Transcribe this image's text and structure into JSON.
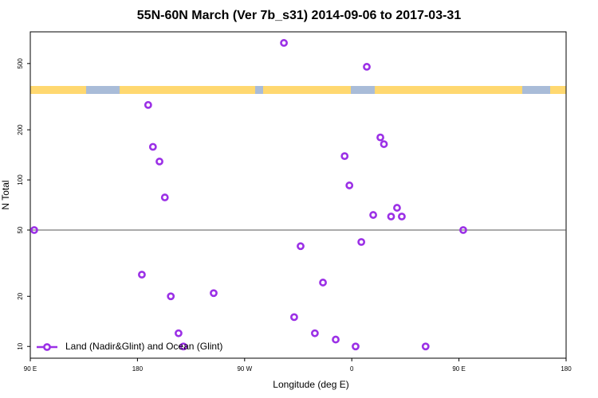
{
  "chart_data": {
    "type": "scatter",
    "title": "55N-60N March (Ver 7b_s31)   2014-09-06 to 2017-03-31",
    "xlabel": "Longitude (deg E)",
    "ylabel": "N Total",
    "xlim": [
      90,
      540
    ],
    "xticks": [
      {
        "value": 90,
        "label": "90 E"
      },
      180,
      {
        "value": 270,
        "label": "90 W"
      },
      {
        "value": 360,
        "label": "0"
      },
      {
        "value": 450,
        "label": "90 E"
      },
      {
        "value": 540,
        "label": "180"
      }
    ],
    "ylim": [
      8.5,
      775
    ],
    "log_y": true,
    "yticks": [
      10,
      20,
      50,
      100,
      200,
      500
    ],
    "hline": 50,
    "legend": "bottom-left",
    "series": [
      {
        "name": "Land (Nadir&Glint) and Ocean (Glint)",
        "color": "#9b30e6",
        "x": [
          93.3,
          303,
          372.6,
          189,
          193,
          198.5,
          203,
          354,
          358,
          384,
          387,
          398,
          378,
          393,
          402,
          453.6,
          368,
          317,
          183.7,
          335.8,
          208,
          244,
          311.6,
          214.5,
          329,
          346.5,
          218.6,
          363.2,
          422
        ],
        "values": [
          50,
          665,
          478,
          282,
          158,
          129,
          78.5,
          139,
          92.7,
          180,
          164,
          68,
          61.6,
          60.3,
          60.3,
          50,
          42.4,
          40,
          27,
          24.2,
          20,
          20.9,
          15,
          12,
          12,
          11,
          10,
          10,
          10
        ]
      }
    ]
  }
}
